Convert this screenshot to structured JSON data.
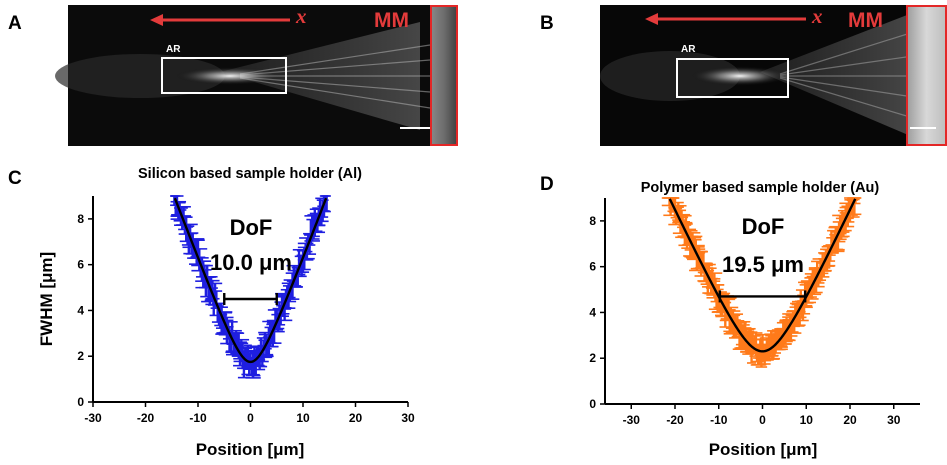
{
  "panels": {
    "A": "A",
    "B": "B",
    "C": "C",
    "D": "D"
  },
  "images": [
    {
      "id": "A",
      "axis_label": "x",
      "region_label": "MM",
      "box_label": "AR"
    },
    {
      "id": "B",
      "axis_label": "x",
      "region_label": "MM",
      "box_label": "AR"
    }
  ],
  "colors": {
    "arrow": "#e33b3b",
    "series_C": "#1f1fe0",
    "series_D": "#ff7a1a",
    "fit": "#000000"
  },
  "chart_data": [
    {
      "type": "line",
      "title": "Silicon based sample holder (Al)",
      "xlabel": "Position [μm]",
      "ylabel": "FWHM [μm]",
      "xlim": [
        -30,
        30
      ],
      "ylim": [
        0,
        9
      ],
      "xticks": [
        "-30",
        "-20",
        "-10",
        "0",
        "10",
        "20",
        "30"
      ],
      "yticks": [
        "0",
        "2",
        "4",
        "6",
        "8"
      ],
      "annotation": {
        "line1": "DoF",
        "line2": "10.0 μm",
        "bar_from": -5,
        "bar_to": 5,
        "bar_y": 4.5
      },
      "fit": {
        "x0": 0,
        "y0": 1.75,
        "dof": 10.0
      },
      "series": [
        {
          "style": "data-with-errorbars",
          "color": "#1f1fe0",
          "error": 0.35
        },
        {
          "style": "fit",
          "color": "#000000"
        }
      ]
    },
    {
      "type": "line",
      "title": "Polymer based sample holder (Au)",
      "xlabel": "Position [μm]",
      "ylabel": "",
      "xlim": [
        -36,
        36
      ],
      "ylim": [
        0,
        9
      ],
      "xticks": [
        "-30",
        "-20",
        "-10",
        "0",
        "10",
        "20",
        "30"
      ],
      "yticks": [
        "0",
        "2",
        "4",
        "6",
        "8"
      ],
      "annotation": {
        "line1": "DoF",
        "line2": "19.5 μm",
        "bar_from": -9.75,
        "bar_to": 9.75,
        "bar_y": 4.7
      },
      "fit": {
        "x0": 0,
        "y0": 2.3,
        "dof": 19.5
      },
      "series": [
        {
          "style": "data-with-errorbars",
          "color": "#ff7a1a",
          "error": 0.3
        },
        {
          "style": "fit",
          "color": "#000000"
        }
      ]
    }
  ]
}
